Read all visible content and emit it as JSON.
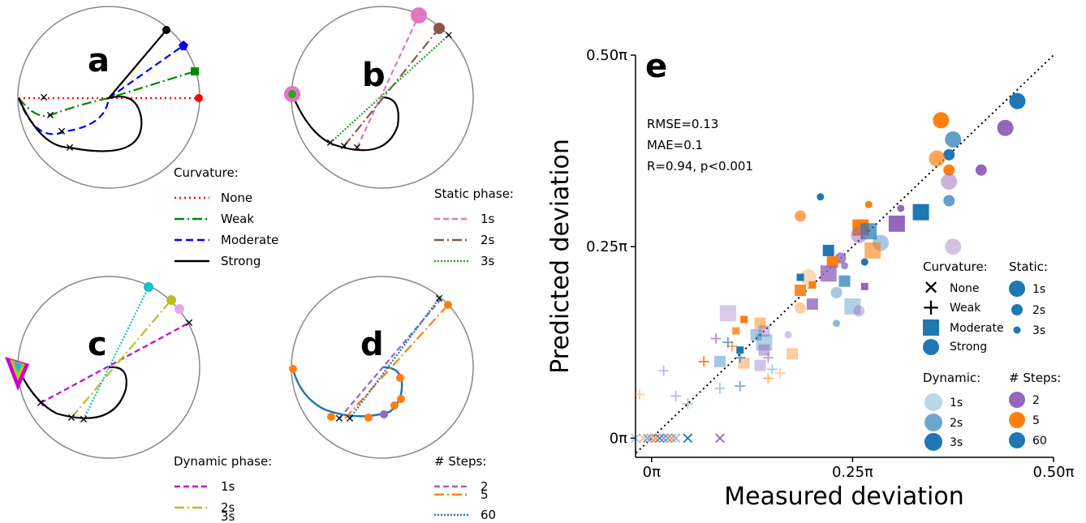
{
  "panel_letters": {
    "a": "a",
    "b": "b",
    "c": "c",
    "d": "d",
    "e": "e"
  },
  "colors": {
    "none": "#ff0000",
    "weak": "#008800",
    "moderate": "#0000ee",
    "strong": "#000000",
    "s1": "#e377c2",
    "s2": "#8c564b",
    "s3": "#2ca02c",
    "d1": "#cc00cc",
    "d2": "#bcbd22",
    "d3": "#17becf",
    "steps2": "#9467bd",
    "steps5": "#ff7f0e",
    "steps60": "#1f77b4",
    "scatter_blue": "#1f77b4",
    "scatter_orange": "#ff7f0e",
    "scatter_purple": "#9467bd"
  },
  "legend_a": {
    "title": "Curvature:",
    "items": [
      "None",
      "Weak",
      "Moderate",
      "Strong"
    ]
  },
  "legend_b": {
    "title": "Static phase:",
    "items": [
      "1s",
      "2s",
      "3s"
    ]
  },
  "legend_c": {
    "title": "Dynamic phase:",
    "items": [
      "1s",
      "2s",
      "3s"
    ]
  },
  "legend_d": {
    "title": "# Steps:",
    "items": [
      "2",
      "5",
      "60"
    ]
  },
  "stats": {
    "rmse": "RMSE=0.13",
    "mae": "MAE=0.1",
    "r": "R=0.94, p<0.001"
  },
  "legend_e": {
    "curvature_title": "Curvature:",
    "curvature_items": [
      "None",
      "Weak",
      "Moderate",
      "Strong"
    ],
    "static_title": "Static:",
    "static_items": [
      "1s",
      "2s",
      "3s"
    ],
    "dynamic_title": "Dynamic:",
    "dynamic_items": [
      "1s",
      "2s",
      "3s"
    ],
    "steps_title": "# Steps:",
    "steps_items": [
      "2",
      "5",
      "60"
    ]
  },
  "chart_data": {
    "type": "scatter",
    "xlabel": "Measured deviation",
    "ylabel": "Predicted deviation",
    "x_ticks": [
      "0π",
      "0.25π",
      "0.50π"
    ],
    "y_ticks": [
      "0π",
      "0.25π",
      "0.50π"
    ],
    "x_tick_values": [
      0,
      0.25,
      0.5
    ],
    "y_tick_values": [
      0,
      0.25,
      0.5
    ],
    "xlim": [
      -0.02,
      0.5
    ],
    "ylim": [
      -0.025,
      0.5
    ],
    "identity_line": true,
    "grid": false,
    "points": [
      {
        "x": 0.455,
        "y": 0.44,
        "c": "b",
        "m": "o",
        "s": 2,
        "a": 1
      },
      {
        "x": 0.36,
        "y": 0.415,
        "c": "o",
        "m": "o",
        "s": 2,
        "a": 1
      },
      {
        "x": 0.44,
        "y": 0.405,
        "c": "p",
        "m": "o",
        "s": 2,
        "a": 1
      },
      {
        "x": 0.375,
        "y": 0.39,
        "c": "b",
        "m": "o",
        "s": 2,
        "a": 0.7
      },
      {
        "x": 0.37,
        "y": 0.37,
        "c": "b",
        "m": "o",
        "s": 1,
        "a": 1
      },
      {
        "x": 0.355,
        "y": 0.365,
        "c": "o",
        "m": "o",
        "s": 2,
        "a": 0.7
      },
      {
        "x": 0.37,
        "y": 0.35,
        "c": "o",
        "m": "o",
        "s": 1,
        "a": 1
      },
      {
        "x": 0.41,
        "y": 0.35,
        "c": "p",
        "m": "o",
        "s": 1,
        "a": 1
      },
      {
        "x": 0.37,
        "y": 0.335,
        "c": "p",
        "m": "o",
        "s": 2,
        "a": 0.5
      },
      {
        "x": 0.37,
        "y": 0.31,
        "c": "b",
        "m": "o",
        "s": 1,
        "a": 0.7
      },
      {
        "x": 0.21,
        "y": 0.315,
        "c": "b",
        "m": "o",
        "s": 0,
        "a": 1
      },
      {
        "x": 0.27,
        "y": 0.305,
        "c": "o",
        "m": "o",
        "s": 0,
        "a": 1
      },
      {
        "x": 0.31,
        "y": 0.3,
        "c": "p",
        "m": "o",
        "s": 0,
        "a": 1
      },
      {
        "x": 0.335,
        "y": 0.295,
        "c": "b",
        "m": "s",
        "s": 2,
        "a": 1
      },
      {
        "x": 0.185,
        "y": 0.29,
        "c": "o",
        "m": "o",
        "s": 1,
        "a": 0.7
      },
      {
        "x": 0.305,
        "y": 0.28,
        "c": "p",
        "m": "s",
        "s": 2,
        "a": 1
      },
      {
        "x": 0.26,
        "y": 0.275,
        "c": "o",
        "m": "s",
        "s": 2,
        "a": 1
      },
      {
        "x": 0.27,
        "y": 0.27,
        "c": "b",
        "m": "s",
        "s": 2,
        "a": 0.7
      },
      {
        "x": 0.258,
        "y": 0.265,
        "c": "p",
        "m": "o",
        "s": 2,
        "a": 0.5
      },
      {
        "x": 0.285,
        "y": 0.255,
        "c": "b",
        "m": "o",
        "s": 2,
        "a": 0.4
      },
      {
        "x": 0.375,
        "y": 0.25,
        "c": "p",
        "m": "o",
        "s": 2,
        "a": 0.4
      },
      {
        "x": 0.275,
        "y": 0.245,
        "c": "o",
        "m": "s",
        "s": 2,
        "a": 0.6
      },
      {
        "x": 0.22,
        "y": 0.245,
        "c": "b",
        "m": "s",
        "s": 1,
        "a": 1
      },
      {
        "x": 0.235,
        "y": 0.235,
        "c": "p",
        "m": "o",
        "s": 1,
        "a": 0.8
      },
      {
        "x": 0.225,
        "y": 0.23,
        "c": "o",
        "m": "s",
        "s": 1,
        "a": 1
      },
      {
        "x": 0.265,
        "y": 0.23,
        "c": "b",
        "m": "o",
        "s": 0,
        "a": 1
      },
      {
        "x": 0.24,
        "y": 0.225,
        "c": "p",
        "m": "o",
        "s": 0,
        "a": 0.8
      },
      {
        "x": 0.22,
        "y": 0.215,
        "c": "p",
        "m": "s",
        "s": 2,
        "a": 0.8
      },
      {
        "x": 0.195,
        "y": 0.21,
        "c": "o",
        "m": "o",
        "s": 2,
        "a": 0.3
      },
      {
        "x": 0.185,
        "y": 0.21,
        "c": "b",
        "m": "s",
        "s": 0,
        "a": 1
      },
      {
        "x": 0.24,
        "y": 0.205,
        "c": "b",
        "m": "s",
        "s": 1,
        "a": 0.7
      },
      {
        "x": 0.2,
        "y": 0.2,
        "c": "o",
        "m": "s",
        "s": 0,
        "a": 1
      },
      {
        "x": 0.265,
        "y": 0.198,
        "c": "p",
        "m": "s",
        "s": 0,
        "a": 1
      },
      {
        "x": 0.185,
        "y": 0.193,
        "c": "o",
        "m": "s",
        "s": 1,
        "a": 0.9
      },
      {
        "x": 0.23,
        "y": 0.19,
        "c": "b",
        "m": "o",
        "s": 1,
        "a": 0.4
      },
      {
        "x": 0.2,
        "y": 0.175,
        "c": "p",
        "m": "s",
        "s": 1,
        "a": 0.8
      },
      {
        "x": 0.185,
        "y": 0.17,
        "c": "o",
        "m": "o",
        "s": 1,
        "a": 0.4
      },
      {
        "x": 0.25,
        "y": 0.172,
        "c": "b",
        "m": "s",
        "s": 2,
        "a": 0.35
      },
      {
        "x": 0.258,
        "y": 0.166,
        "c": "p",
        "m": "o",
        "s": 1,
        "a": 0.4
      },
      {
        "x": 0.095,
        "y": 0.163,
        "c": "p",
        "m": "s",
        "s": 2,
        "a": 0.35
      },
      {
        "x": 0.115,
        "y": 0.155,
        "c": "o",
        "m": "s",
        "s": 0,
        "a": 1
      },
      {
        "x": 0.135,
        "y": 0.15,
        "c": "o",
        "m": "s",
        "s": 1,
        "a": 0.5
      },
      {
        "x": 0.23,
        "y": 0.15,
        "c": "b",
        "m": "o",
        "s": 0,
        "a": 0.5
      },
      {
        "x": 0.14,
        "y": 0.14,
        "c": "p",
        "m": "s",
        "s": 1,
        "a": 0.4
      },
      {
        "x": 0.13,
        "y": 0.135,
        "c": "b",
        "m": "s",
        "s": 1,
        "a": 0.4
      },
      {
        "x": 0.105,
        "y": 0.14,
        "c": "o",
        "m": "s",
        "s": 0,
        "a": 0.8
      },
      {
        "x": 0.17,
        "y": 0.135,
        "c": "p",
        "m": "o",
        "s": 0,
        "a": 0.4
      },
      {
        "x": 0.14,
        "y": 0.125,
        "c": "b",
        "m": "s",
        "s": 2,
        "a": 0.35
      },
      {
        "x": 0.14,
        "y": 0.115,
        "c": "p",
        "m": "s",
        "s": 1,
        "a": 0.5
      },
      {
        "x": 0.11,
        "y": 0.115,
        "c": "b",
        "m": "s",
        "s": 0,
        "a": 1
      },
      {
        "x": 0.175,
        "y": 0.11,
        "c": "o",
        "m": "s",
        "s": 1,
        "a": 0.4
      },
      {
        "x": 0.085,
        "y": 0.1,
        "c": "b",
        "m": "s",
        "s": 1,
        "a": 0.4
      },
      {
        "x": 0.115,
        "y": 0.098,
        "c": "o",
        "m": "s",
        "s": 1,
        "a": 0.4
      },
      {
        "x": 0.135,
        "y": 0.095,
        "c": "p",
        "m": "s",
        "s": 1,
        "a": 0.4
      },
      {
        "x": 0.08,
        "y": 0.13,
        "c": "p",
        "m": "+",
        "s": 2,
        "a": 0.7
      },
      {
        "x": 0.095,
        "y": 0.125,
        "c": "b",
        "m": "+",
        "s": 2,
        "a": 0.7
      },
      {
        "x": 0.1,
        "y": 0.12,
        "c": "o",
        "m": "+",
        "s": 2,
        "a": 0.7
      },
      {
        "x": 0.11,
        "y": 0.105,
        "c": "b",
        "m": "+",
        "s": 2,
        "a": 0.7
      },
      {
        "x": 0.065,
        "y": 0.1,
        "c": "o",
        "m": "+",
        "s": 2,
        "a": 1
      },
      {
        "x": 0.145,
        "y": 0.105,
        "c": "p",
        "m": "+",
        "s": 2,
        "a": 0.6
      },
      {
        "x": 0.15,
        "y": 0.09,
        "c": "b",
        "m": "+",
        "s": 2,
        "a": 0.4
      },
      {
        "x": 0.16,
        "y": 0.085,
        "c": "o",
        "m": "+",
        "s": 2,
        "a": 0.4
      },
      {
        "x": 0.145,
        "y": 0.078,
        "c": "o",
        "m": "+",
        "s": 2,
        "a": 0.6
      },
      {
        "x": 0.015,
        "y": 0.088,
        "c": "p",
        "m": "+",
        "s": 2,
        "a": 0.5
      },
      {
        "x": 0.11,
        "y": 0.068,
        "c": "b",
        "m": "+",
        "s": 2,
        "a": 0.6
      },
      {
        "x": 0.085,
        "y": 0.065,
        "c": "b",
        "m": "+",
        "s": 2,
        "a": 0.4
      },
      {
        "x": -0.015,
        "y": 0.057,
        "c": "o",
        "m": "+",
        "s": 2,
        "a": 0.4
      },
      {
        "x": 0.03,
        "y": 0.055,
        "c": "p",
        "m": "+",
        "s": 2,
        "a": 0.5
      },
      {
        "x": 0.045,
        "y": 0.045,
        "c": "b",
        "m": "+",
        "s": 2,
        "a": 0.4
      },
      {
        "x": -0.02,
        "y": 0.0,
        "c": "b",
        "m": "x",
        "s": 2,
        "a": 0.4
      },
      {
        "x": -0.01,
        "y": 0.0,
        "c": "o",
        "m": "x",
        "s": 2,
        "a": 0.5
      },
      {
        "x": -0.005,
        "y": 0.0,
        "c": "b",
        "m": "x",
        "s": 2,
        "a": 0.6
      },
      {
        "x": 0.0,
        "y": 0.0,
        "c": "p",
        "m": "x",
        "s": 2,
        "a": 0.5
      },
      {
        "x": 0.005,
        "y": 0.0,
        "c": "o",
        "m": "x",
        "s": 2,
        "a": 0.8
      },
      {
        "x": 0.01,
        "y": 0.0,
        "c": "b",
        "m": "x",
        "s": 2,
        "a": 0.8
      },
      {
        "x": 0.015,
        "y": 0.0,
        "c": "p",
        "m": "x",
        "s": 2,
        "a": 0.7
      },
      {
        "x": 0.02,
        "y": 0.0,
        "c": "b",
        "m": "x",
        "s": 2,
        "a": 0.6
      },
      {
        "x": 0.025,
        "y": 0.0,
        "c": "o",
        "m": "x",
        "s": 2,
        "a": 0.7
      },
      {
        "x": 0.03,
        "y": 0.0,
        "c": "b",
        "m": "x",
        "s": 2,
        "a": 0.5
      },
      {
        "x": 0.045,
        "y": 0.0,
        "c": "b",
        "m": "x",
        "s": 2,
        "a": 1
      },
      {
        "x": 0.085,
        "y": 0.0,
        "c": "p",
        "m": "x",
        "s": 2,
        "a": 1
      }
    ]
  }
}
